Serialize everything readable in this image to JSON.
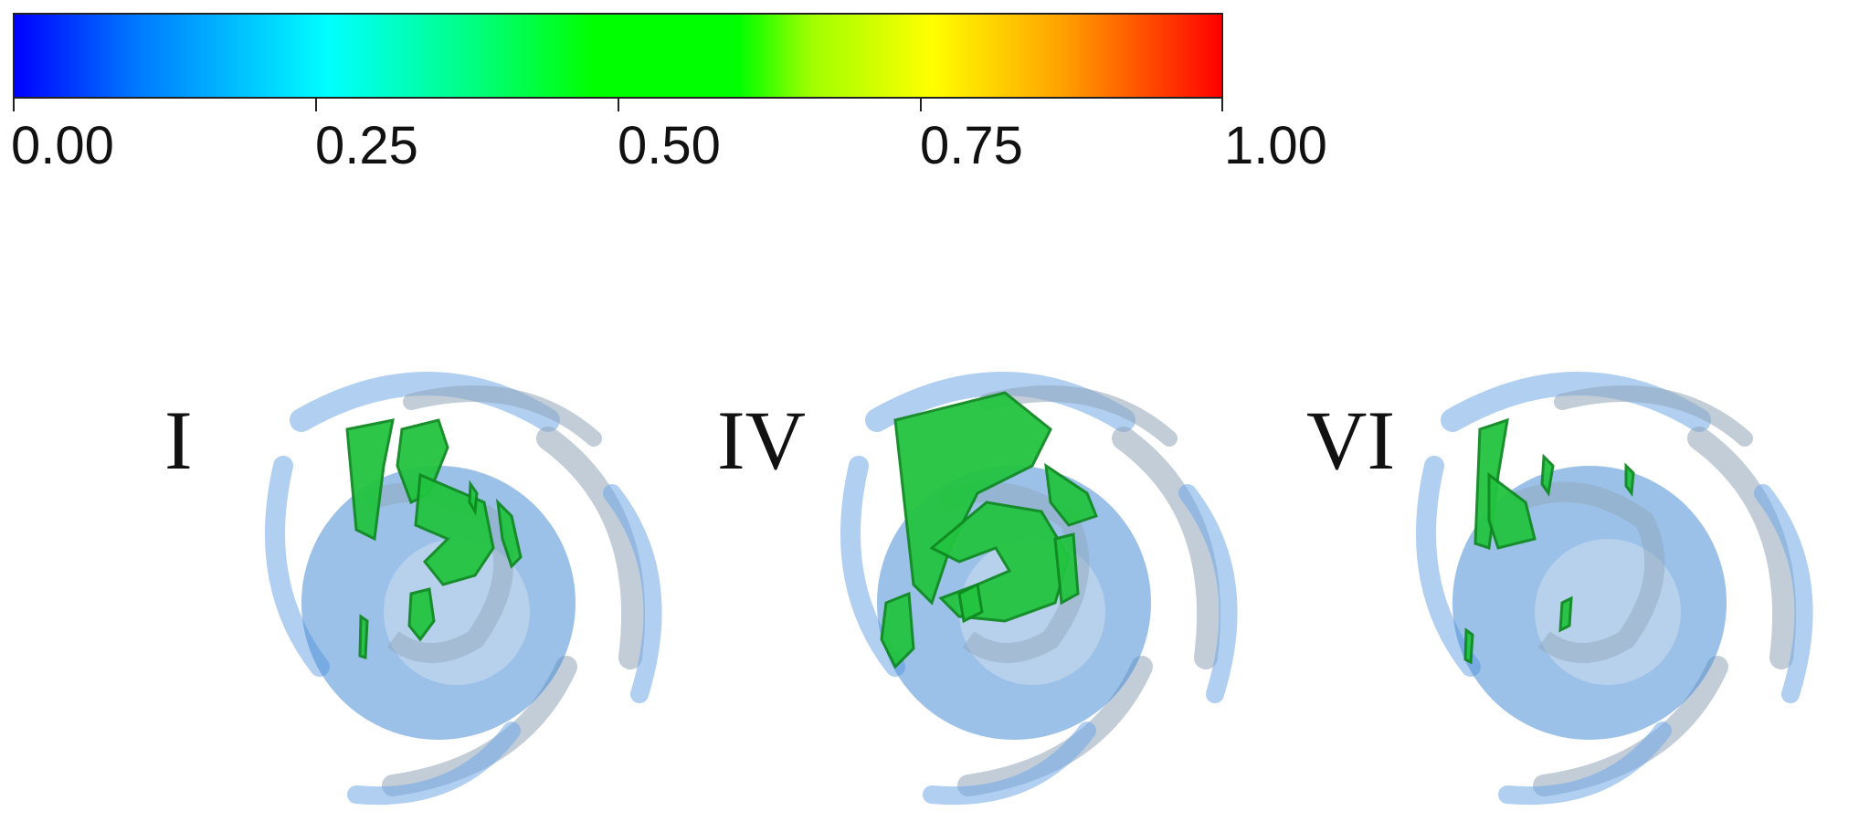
{
  "colorbar": {
    "ticks": [
      "0.00",
      "0.25",
      "0.50",
      "0.75",
      "1.00"
    ],
    "colors": [
      "#0000ff",
      "#0078ff",
      "#00ffff",
      "#00ff80",
      "#00ff00",
      "#00ff00",
      "#a0ff00",
      "#ffff00",
      "#ffa000",
      "#ff0000"
    ]
  },
  "panels": [
    {
      "label": "I",
      "iso_extent": "medium"
    },
    {
      "label": "IV",
      "iso_extent": "large"
    },
    {
      "label": "VI",
      "iso_extent": "small"
    }
  ],
  "render_colors": {
    "blade": "#6fa8e6",
    "blade_shadow": "#8fa4b8",
    "hub": "#4a8ed6",
    "isosurface": "#22c440",
    "isosurface_dark": "#0f8a22"
  }
}
